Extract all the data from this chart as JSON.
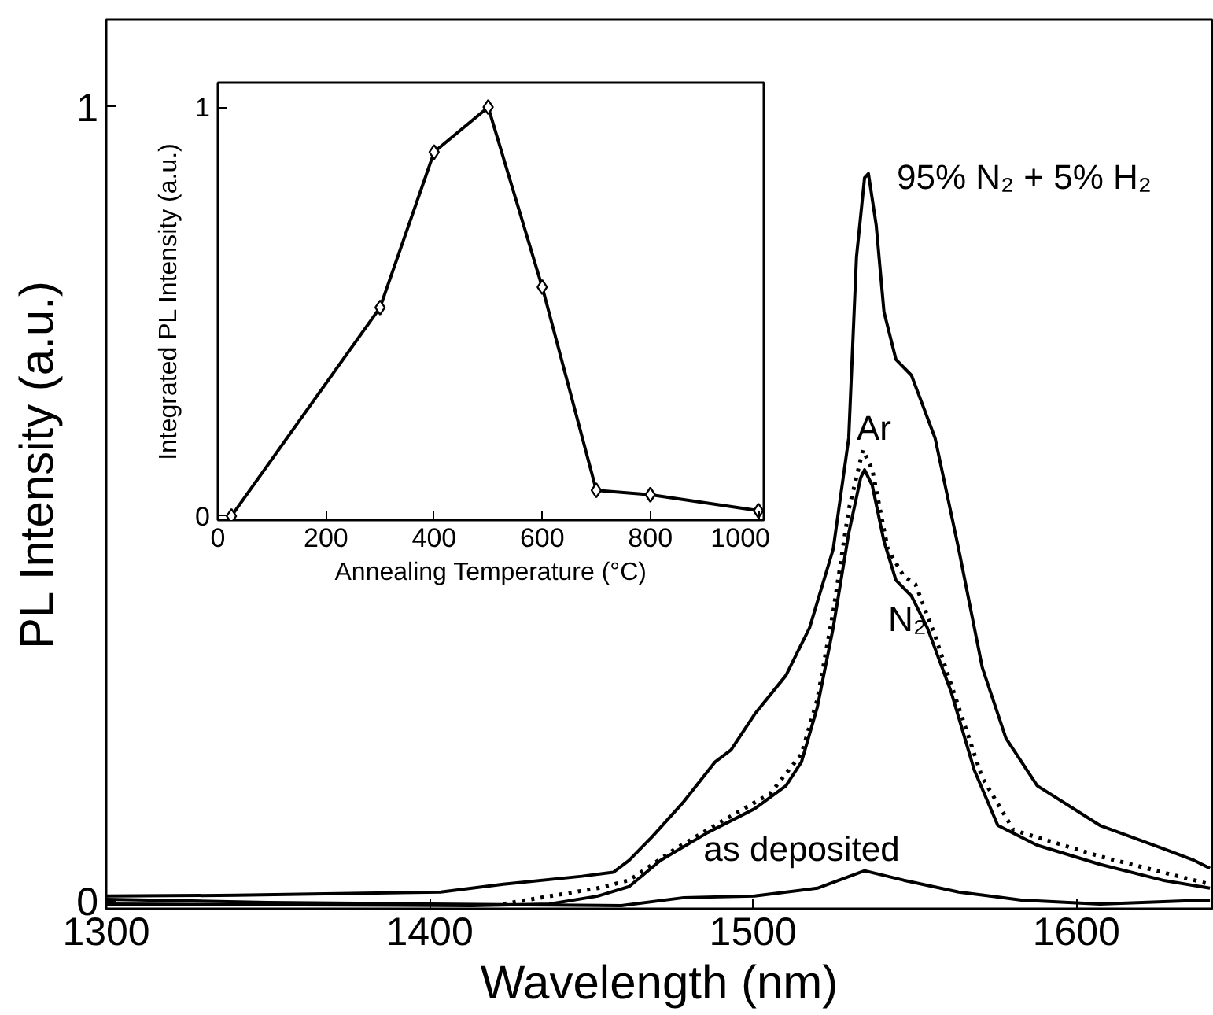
{
  "chart_data": [
    {
      "type": "line",
      "xlabel": "Wavelength (nm)",
      "ylabel": "PL Intensity (a.u.)",
      "xlim": [
        1300,
        1642
      ],
      "ylim": [
        -0.01,
        1.11
      ],
      "xticks": [
        1300,
        1400,
        1500,
        1600
      ],
      "yticks": [
        0,
        1
      ],
      "grid": false,
      "marker": "none",
      "series": [
        {
          "name": "95% N₂ + 5% H₂",
          "color": "#000000",
          "line_style": "solid",
          "x": [
            1300.2,
            1340.3,
            1403.4,
            1422.8,
            1447.1,
            1456.8,
            1461.7,
            1468.9,
            1478.6,
            1488.3,
            1493.2,
            1500.5,
            1510.2,
            1517.5,
            1524.8,
            1529.6,
            1532.0,
            1534.5,
            1535.7,
            1538.1,
            1540.5,
            1544.2,
            1549.0,
            1556.3,
            1563.6,
            1570.9,
            1578.2,
            1587.9,
            1607.3,
            1626.7,
            1636.4,
            1641.3
          ],
          "values": [
            0.006,
            0.007,
            0.011,
            0.021,
            0.031,
            0.036,
            0.051,
            0.081,
            0.125,
            0.175,
            0.19,
            0.235,
            0.284,
            0.344,
            0.443,
            0.583,
            0.811,
            0.911,
            0.916,
            0.851,
            0.742,
            0.682,
            0.662,
            0.583,
            0.443,
            0.294,
            0.205,
            0.145,
            0.095,
            0.066,
            0.051,
            0.041
          ]
        },
        {
          "name": "Ar",
          "color": "#000000",
          "line_style": "dotted",
          "x": [
            1422.8,
            1452.0,
            1461.7,
            1476.2,
            1490.7,
            1505.3,
            1515.0,
            1519.9,
            1524.8,
            1529.6,
            1534.0,
            1536.9,
            1541.7,
            1546.6,
            1550.2,
            1556.3,
            1563.6,
            1570.9,
            1580.6,
            1607.3,
            1626.7,
            1641.3
          ],
          "values": [
            -0.004,
            0.016,
            0.026,
            0.066,
            0.101,
            0.135,
            0.185,
            0.254,
            0.364,
            0.493,
            0.568,
            0.543,
            0.443,
            0.409,
            0.399,
            0.334,
            0.244,
            0.155,
            0.089,
            0.056,
            0.036,
            0.021
          ]
        },
        {
          "name": "N₂",
          "color": "#000000",
          "line_style": "solid",
          "x": [
            1300.2,
            1413.0,
            1437.0,
            1452.0,
            1461.7,
            1471.4,
            1486.0,
            1500.5,
            1510.2,
            1515.0,
            1519.9,
            1524.8,
            1529.6,
            1533.3,
            1534.5,
            1536.9,
            1540.5,
            1544.2,
            1549.0,
            1553.9,
            1561.2,
            1568.4,
            1575.7,
            1587.9,
            1607.3,
            1626.7,
            1641.3
          ],
          "values": [
            -0.004,
            -0.006,
            -0.004,
            0.006,
            0.018,
            0.051,
            0.086,
            0.116,
            0.145,
            0.175,
            0.244,
            0.344,
            0.463,
            0.533,
            0.543,
            0.523,
            0.453,
            0.404,
            0.384,
            0.344,
            0.264,
            0.165,
            0.095,
            0.07,
            0.046,
            0.026,
            0.016
          ]
        },
        {
          "name": "as deposited",
          "color": "#000000",
          "line_style": "solid",
          "x": [
            1300.2,
            1350.0,
            1400.0,
            1459.3,
            1478.6,
            1500.5,
            1519.9,
            1534.5,
            1546.6,
            1563.6,
            1583.0,
            1607.3,
            1641.3
          ],
          "values": [
            0.002,
            -0.002,
            -0.004,
            -0.006,
            0.004,
            0.006,
            0.016,
            0.038,
            0.026,
            0.011,
            0.001,
            -0.004,
            0.001
          ]
        }
      ]
    },
    {
      "type": "line",
      "xlabel": "Annealing Temperature (°C)",
      "ylabel": "Integrated PL Intensity (a.u.)",
      "xlim": [
        0,
        1010
      ],
      "ylim": [
        -0.01,
        1.06
      ],
      "xticks": [
        0,
        200,
        400,
        600,
        800,
        1000
      ],
      "yticks": [
        0,
        1
      ],
      "grid": false,
      "marker": "diamond",
      "series": [
        {
          "color": "#000000",
          "line_style": "solid",
          "x": [
            25,
            300,
            400,
            500,
            600,
            700,
            800,
            1000
          ],
          "values": [
            0.0,
            0.51,
            0.89,
            1.0,
            0.56,
            0.063,
            0.052,
            0.013
          ]
        }
      ]
    }
  ]
}
